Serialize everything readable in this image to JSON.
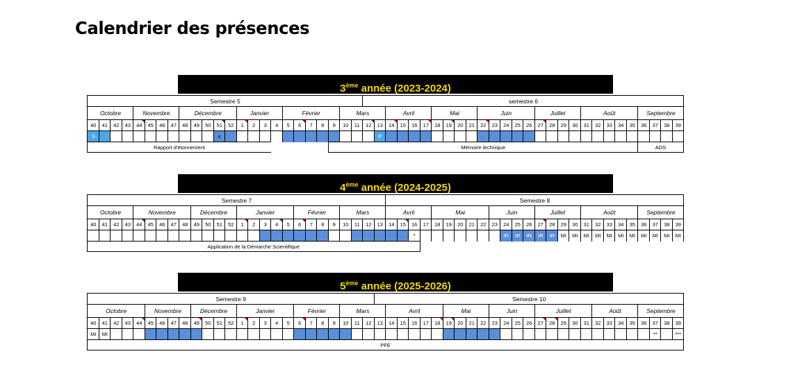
{
  "page_title": "Calendrier des présences",
  "weeks": [
    "40",
    "41",
    "42",
    "43",
    "44",
    "45",
    "46",
    "47",
    "48",
    "49",
    "50",
    "51",
    "52",
    "1",
    "2",
    "3",
    "4",
    "5",
    "6",
    "7",
    "8",
    "9",
    "10",
    "11",
    "12",
    "13",
    "14",
    "15",
    "16",
    "17",
    "18",
    "19",
    "20",
    "21",
    "22",
    "23",
    "24",
    "25",
    "26",
    "27",
    "28",
    "29",
    "30",
    "31",
    "32",
    "33",
    "34",
    "35",
    "36",
    "37",
    "38",
    "39"
  ],
  "years": [
    {
      "ordinal": "3",
      "suffix": "ème",
      "label": " année (2023-2024)",
      "semesters": [
        {
          "name": "Semestre 5",
          "start": 0,
          "end": 24
        },
        {
          "name": "semestre 6",
          "start": 24,
          "end": 52
        }
      ],
      "months": [
        {
          "name": "Octobre",
          "start": 0,
          "end": 4
        },
        {
          "name": "Novembre",
          "start": 4,
          "end": 8
        },
        {
          "name": "Décembre",
          "start": 8,
          "end": 13
        },
        {
          "name": "Janvier",
          "start": 13,
          "end": 17
        },
        {
          "name": "Février",
          "start": 17,
          "end": 22
        },
        {
          "name": "Mars",
          "start": 22,
          "end": 26
        },
        {
          "name": "Avril",
          "start": 26,
          "end": 30
        },
        {
          "name": "Mai",
          "start": 30,
          "end": 34
        },
        {
          "name": "Juin",
          "start": 34,
          "end": 39
        },
        {
          "name": "Juillet",
          "start": 39,
          "end": 43
        },
        {
          "name": "Août",
          "start": 43,
          "end": 48
        },
        {
          "name": "Septembre",
          "start": 48,
          "end": 52
        }
      ],
      "flags": [
        4,
        11,
        13,
        18,
        24,
        26,
        29,
        31,
        34,
        39
      ],
      "presence": [
        {
          "week": 0,
          "style": "light",
          "text": "S"
        },
        {
          "week": 1,
          "style": "light",
          "text": ""
        },
        {
          "week": 11,
          "style": "blue",
          "text": "x"
        },
        {
          "week": 12,
          "style": "blue",
          "text": ""
        },
        {
          "week": 17,
          "style": "blue",
          "text": ""
        },
        {
          "week": 18,
          "style": "blue",
          "text": ""
        },
        {
          "week": 19,
          "style": "blue",
          "text": ""
        },
        {
          "week": 20,
          "style": "blue",
          "text": ""
        },
        {
          "week": 21,
          "style": "blue",
          "text": ""
        },
        {
          "week": 25,
          "style": "light",
          "text": "P"
        },
        {
          "week": 26,
          "style": "blue",
          "text": ""
        },
        {
          "week": 27,
          "style": "blue",
          "text": ""
        },
        {
          "week": 28,
          "style": "blue",
          "text": ""
        },
        {
          "week": 29,
          "style": "blue",
          "text": ""
        },
        {
          "week": 34,
          "style": "blue",
          "text": ""
        },
        {
          "week": 35,
          "style": "blue",
          "text": ""
        },
        {
          "week": 36,
          "style": "blue",
          "text": ""
        },
        {
          "week": 37,
          "style": "blue",
          "text": ""
        },
        {
          "week": 38,
          "style": "blue",
          "text": ""
        }
      ],
      "activities": [
        {
          "name": "Rapport d'étonnement",
          "start": 0,
          "end": 16
        },
        {
          "name": "Mémoire technique",
          "start": 21,
          "end": 48
        },
        {
          "name": "ADS",
          "start": 48,
          "end": 52
        }
      ]
    },
    {
      "ordinal": "4",
      "suffix": "ème",
      "label": " année (2024-2025)",
      "semesters": [
        {
          "name": "Semestre 7",
          "start": 0,
          "end": 26
        },
        {
          "name": "Semestre 8",
          "start": 26,
          "end": 52
        }
      ],
      "months": [
        {
          "name": "Octobre",
          "start": 0,
          "end": 4
        },
        {
          "name": "Novembre",
          "start": 4,
          "end": 9
        },
        {
          "name": "Décembre",
          "start": 9,
          "end": 13
        },
        {
          "name": "Janvier",
          "start": 13,
          "end": 18
        },
        {
          "name": "Février",
          "start": 18,
          "end": 22
        },
        {
          "name": "Mars",
          "start": 22,
          "end": 26
        },
        {
          "name": "Avril",
          "start": 26,
          "end": 30
        },
        {
          "name": "Mai",
          "start": 30,
          "end": 35
        },
        {
          "name": "Juin",
          "start": 35,
          "end": 39
        },
        {
          "name": "Juillet",
          "start": 39,
          "end": 43
        },
        {
          "name": "Août",
          "start": 43,
          "end": 48
        },
        {
          "name": "Septembre",
          "start": 48,
          "end": 52
        }
      ],
      "flags": [
        4,
        13,
        16,
        18,
        27,
        39
      ],
      "presence": [
        {
          "week": 15,
          "style": "blue",
          "text": ""
        },
        {
          "week": 16,
          "style": "blue",
          "text": ""
        },
        {
          "week": 17,
          "style": "blue",
          "text": ""
        },
        {
          "week": 18,
          "style": "blue",
          "text": ""
        },
        {
          "week": 19,
          "style": "blue",
          "text": ""
        },
        {
          "week": 20,
          "style": "blue",
          "text": ""
        },
        {
          "week": 23,
          "style": "blue",
          "text": ""
        },
        {
          "week": 24,
          "style": "blue",
          "text": ""
        },
        {
          "week": 25,
          "style": "blue",
          "text": ""
        },
        {
          "week": 26,
          "style": "blue",
          "text": ""
        },
        {
          "week": 27,
          "style": "blue",
          "text": ""
        },
        {
          "week": 28,
          "style": "none",
          "text": "*"
        },
        {
          "week": 36,
          "style": "blue-mark",
          "text": "IR"
        },
        {
          "week": 37,
          "style": "blue-mark",
          "text": "IR"
        },
        {
          "week": 38,
          "style": "blue-mark",
          "text": "IR"
        },
        {
          "week": 39,
          "style": "blue-mark",
          "text": "IR"
        },
        {
          "week": 40,
          "style": "blue-mark",
          "text": "IR"
        },
        {
          "week": 41,
          "style": "none",
          "text": "MI"
        },
        {
          "week": 42,
          "style": "none",
          "text": "MI"
        },
        {
          "week": 43,
          "style": "none",
          "text": "MI"
        },
        {
          "week": 44,
          "style": "none",
          "text": "MI"
        },
        {
          "week": 45,
          "style": "none",
          "text": "MI"
        },
        {
          "week": 46,
          "style": "none",
          "text": "MI"
        },
        {
          "week": 47,
          "style": "none",
          "text": "MI"
        },
        {
          "week": 48,
          "style": "none",
          "text": "MI"
        },
        {
          "week": 49,
          "style": "none",
          "text": "MI"
        },
        {
          "week": 50,
          "style": "none",
          "text": "MI"
        },
        {
          "week": 51,
          "style": "none",
          "text": "MI"
        }
      ],
      "activities": [
        {
          "name": "Application de la Démarche Scientifique",
          "start": 0,
          "end": 29
        }
      ]
    },
    {
      "ordinal": "5",
      "suffix": "ème",
      "label": " année (2025-2026)",
      "semesters": [
        {
          "name": "Semestre 9",
          "start": 0,
          "end": 25
        },
        {
          "name": "Semestre 10",
          "start": 25,
          "end": 52
        }
      ],
      "months": [
        {
          "name": "Octobre",
          "start": 0,
          "end": 5
        },
        {
          "name": "Novembre",
          "start": 5,
          "end": 9
        },
        {
          "name": "Décembre",
          "start": 9,
          "end": 13
        },
        {
          "name": "Janvier",
          "start": 13,
          "end": 18
        },
        {
          "name": "Février",
          "start": 18,
          "end": 22
        },
        {
          "name": "Mars",
          "start": 22,
          "end": 26
        },
        {
          "name": "Avril",
          "start": 26,
          "end": 31
        },
        {
          "name": "Mai",
          "start": 31,
          "end": 35
        },
        {
          "name": "Juin",
          "start": 35,
          "end": 39
        },
        {
          "name": "Juillet",
          "start": 39,
          "end": 44
        },
        {
          "name": "Août",
          "start": 44,
          "end": 48
        },
        {
          "name": "Septembre",
          "start": 48,
          "end": 52
        }
      ],
      "flags": [
        4,
        9,
        13,
        18,
        30,
        31,
        39,
        40
      ],
      "presence": [
        {
          "week": 0,
          "style": "none",
          "text": "MI"
        },
        {
          "week": 1,
          "style": "none",
          "text": "MI"
        },
        {
          "week": 5,
          "style": "blue",
          "text": ""
        },
        {
          "week": 6,
          "style": "blue",
          "text": ""
        },
        {
          "week": 7,
          "style": "blue",
          "text": ""
        },
        {
          "week": 8,
          "style": "blue",
          "text": ""
        },
        {
          "week": 9,
          "style": "blue",
          "text": ""
        },
        {
          "week": 18,
          "style": "blue",
          "text": ""
        },
        {
          "week": 19,
          "style": "blue",
          "text": ""
        },
        {
          "week": 20,
          "style": "blue",
          "text": ""
        },
        {
          "week": 21,
          "style": "blue",
          "text": ""
        },
        {
          "week": 22,
          "style": "blue",
          "text": ""
        },
        {
          "week": 31,
          "style": "blue",
          "text": ""
        },
        {
          "week": 32,
          "style": "blue",
          "text": ""
        },
        {
          "week": 33,
          "style": "blue",
          "text": ""
        },
        {
          "week": 34,
          "style": "blue",
          "text": ""
        },
        {
          "week": 35,
          "style": "blue",
          "text": ""
        },
        {
          "week": 49,
          "style": "none",
          "text": "**"
        },
        {
          "week": 51,
          "style": "none",
          "text": "***"
        }
      ],
      "activities": [
        {
          "name": "PFE",
          "start": 0,
          "end": 52
        }
      ]
    }
  ]
}
